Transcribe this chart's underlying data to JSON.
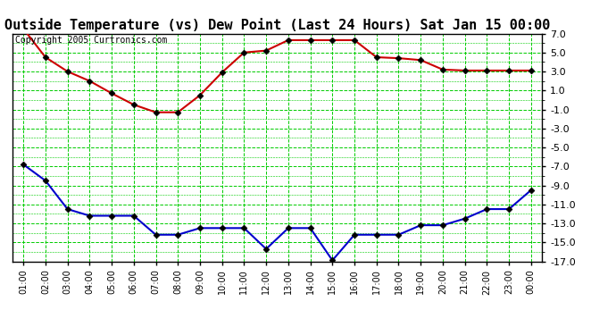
{
  "title": "Outside Temperature (vs) Dew Point (Last 24 Hours) Sat Jan 15 00:00",
  "copyright": "Copyright 2005 Curtronics.com",
  "x_labels": [
    "01:00",
    "02:00",
    "03:00",
    "04:00",
    "05:00",
    "06:00",
    "07:00",
    "08:00",
    "09:00",
    "10:00",
    "11:00",
    "12:00",
    "13:00",
    "14:00",
    "15:00",
    "16:00",
    "17:00",
    "18:00",
    "19:00",
    "20:00",
    "21:00",
    "22:00",
    "23:00",
    "00:00"
  ],
  "temp_data": [
    7.5,
    4.5,
    3.0,
    2.0,
    0.7,
    -0.5,
    -1.3,
    -1.3,
    0.5,
    2.9,
    5.0,
    5.2,
    6.3,
    6.3,
    6.3,
    6.3,
    4.5,
    4.4,
    4.2,
    3.2,
    3.1,
    3.1,
    3.1,
    3.1
  ],
  "dew_data": [
    -6.8,
    -8.5,
    -11.5,
    -12.2,
    -12.2,
    -12.2,
    -14.2,
    -14.2,
    -13.5,
    -13.5,
    -13.5,
    -15.7,
    -13.5,
    -13.5,
    -16.9,
    -14.2,
    -14.2,
    -14.2,
    -13.2,
    -13.2,
    -12.5,
    -11.5,
    -11.5,
    -9.5
  ],
  "temp_color": "#cc0000",
  "dew_color": "#0000cc",
  "bg_color": "#ffffff",
  "plot_bg_color": "#ffffff",
  "grid_color": "#00cc00",
  "ylim_min": -17.0,
  "ylim_max": 7.0,
  "ytick_step": 2.0,
  "title_fontsize": 11,
  "copyright_fontsize": 7,
  "tick_fontsize": 8,
  "xtick_fontsize": 7
}
